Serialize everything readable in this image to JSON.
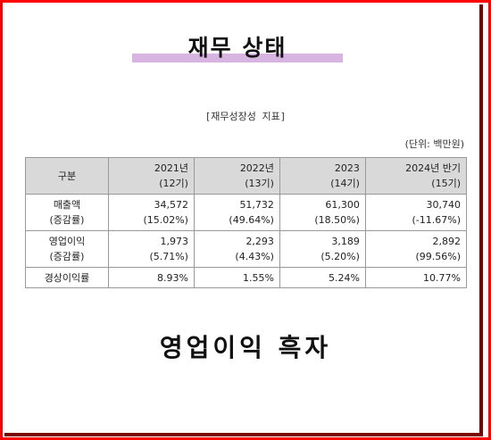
{
  "title": "재무 상태",
  "subtitle": "[재무성장성 지표]",
  "unit": "(단위: 백만원)",
  "table": {
    "header": {
      "label": "구분",
      "cols": [
        {
          "year": "2021년",
          "period": "(12기)"
        },
        {
          "year": "2022년",
          "period": "(13기)"
        },
        {
          "year": "2023",
          "period": "(14기)"
        },
        {
          "year": "2024년 반기",
          "period": "(15기)"
        }
      ]
    },
    "rows": [
      {
        "label": "매출액",
        "sublabel": "(증감률)",
        "values": [
          "34,572",
          "51,732",
          "61,300",
          "30,740"
        ],
        "rates": [
          "(15.02%)",
          "(49.64%)",
          "(18.50%)",
          "(-11.67%)"
        ]
      },
      {
        "label": "영업이익",
        "sublabel": "(증감률)",
        "values": [
          "1,973",
          "2,293",
          "3,189",
          "2,892"
        ],
        "rates": [
          "(5.71%)",
          "(4.43%)",
          "(5.20%)",
          "(99.56%)"
        ]
      }
    ],
    "last_row": {
      "label": "경상이익률",
      "values": [
        "8.93%",
        "1.55%",
        "5.24%",
        "10.77%"
      ]
    }
  },
  "bottom_text": "영업이익 흑자",
  "colors": {
    "frame": "#ff0000",
    "title_highlight": "#d8b4e2",
    "header_bg": "#d9d9d9"
  }
}
